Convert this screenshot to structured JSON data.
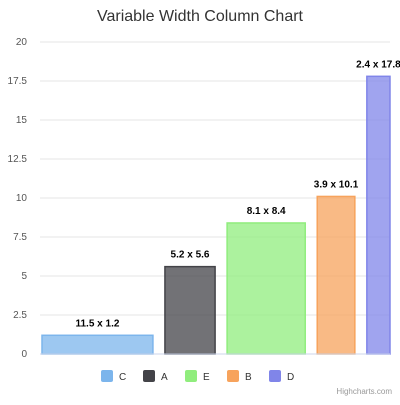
{
  "chart_data": {
    "type": "bar",
    "variant": "variable-width-column",
    "title": "Variable Width Column Chart",
    "xlabel": "",
    "ylabel": "",
    "ylim": [
      0,
      20
    ],
    "y_ticks": [
      "0",
      "2.5",
      "5",
      "7.5",
      "10",
      "12.5",
      "15",
      "17.5",
      "20"
    ],
    "grid": true,
    "legend_position": "bottom",
    "series": [
      {
        "name": "C",
        "width": 11.5,
        "value": 1.2,
        "label": "11.5 x 1.2",
        "color": "#7cb5ec"
      },
      {
        "name": "A",
        "width": 5.2,
        "value": 5.6,
        "label": "5.2 x 5.6",
        "color": "#434348"
      },
      {
        "name": "E",
        "width": 8.1,
        "value": 8.4,
        "label": "8.1 x 8.4",
        "color": "#90ed7d"
      },
      {
        "name": "B",
        "width": 3.9,
        "value": 10.1,
        "label": "3.9 x 10.1",
        "color": "#f7a35c"
      },
      {
        "name": "D",
        "width": 2.4,
        "value": 17.8,
        "label": "2.4 x 17.8",
        "color": "#8085e9"
      }
    ]
  },
  "credits": "Highcharts.com"
}
